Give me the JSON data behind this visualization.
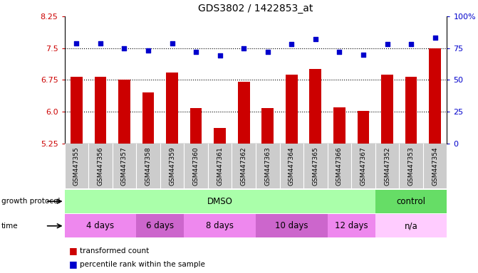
{
  "title": "GDS3802 / 1422853_at",
  "samples": [
    "GSM447355",
    "GSM447356",
    "GSM447357",
    "GSM447358",
    "GSM447359",
    "GSM447360",
    "GSM447361",
    "GSM447362",
    "GSM447363",
    "GSM447364",
    "GSM447365",
    "GSM447366",
    "GSM447367",
    "GSM447352",
    "GSM447353",
    "GSM447354"
  ],
  "transformed_count": [
    6.82,
    6.82,
    6.76,
    6.45,
    6.92,
    6.08,
    5.62,
    6.7,
    6.08,
    6.88,
    7.0,
    6.1,
    6.02,
    6.87,
    6.82,
    7.5
  ],
  "percentile_rank": [
    79,
    79,
    75,
    73,
    79,
    72,
    69,
    75,
    72,
    78,
    82,
    72,
    70,
    78,
    78,
    83
  ],
  "bar_color": "#cc0000",
  "dot_color": "#0000cc",
  "left_ylim": [
    5.25,
    8.25
  ],
  "right_ylim": [
    0,
    100
  ],
  "left_yticks": [
    5.25,
    6.0,
    6.75,
    7.5,
    8.25
  ],
  "right_yticks": [
    0,
    25,
    50,
    75,
    100
  ],
  "right_yticklabels": [
    "0",
    "25",
    "50",
    "75",
    "100%"
  ],
  "left_ycolor": "#cc0000",
  "right_ycolor": "#0000cc",
  "growth_protocol_groups": [
    {
      "label": "DMSO",
      "start": 0,
      "end": 13,
      "color": "#aaffaa"
    },
    {
      "label": "control",
      "start": 13,
      "end": 16,
      "color": "#66dd66"
    }
  ],
  "time_groups": [
    {
      "label": "4 days",
      "start": 0,
      "end": 3,
      "color": "#ee88ee"
    },
    {
      "label": "6 days",
      "start": 3,
      "end": 5,
      "color": "#cc66cc"
    },
    {
      "label": "8 days",
      "start": 5,
      "end": 8,
      "color": "#ee88ee"
    },
    {
      "label": "10 days",
      "start": 8,
      "end": 11,
      "color": "#cc66cc"
    },
    {
      "label": "12 days",
      "start": 11,
      "end": 13,
      "color": "#ee88ee"
    },
    {
      "label": "n/a",
      "start": 13,
      "end": 16,
      "color": "#ffccff"
    }
  ],
  "legend_bar_label": "transformed count",
  "legend_dot_label": "percentile rank within the sample",
  "xlabel_growth": "growth protocol",
  "xlabel_time": "time",
  "background_color": "#ffffff",
  "xtick_bg_color": "#cccccc",
  "grid_color": "#000000",
  "dotted_lines": [
    6.0,
    6.75,
    7.5
  ],
  "bar_width": 0.5,
  "dot_size": 20
}
